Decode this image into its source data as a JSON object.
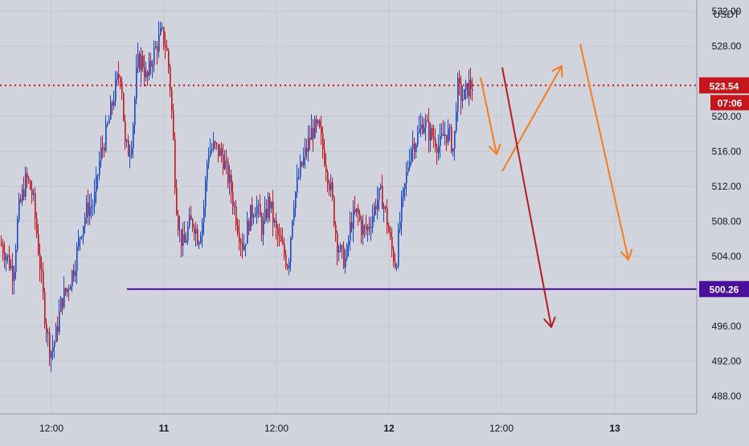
{
  "colors": {
    "background": "#d1d4dc",
    "grid": "#c3c7d0",
    "axis_border": "#9598a1",
    "up_candle": "#1848cc",
    "down_candle": "#c4161c",
    "last_price_line": "#c4161c",
    "support_line": "#4b0f9c",
    "arrow_orange": "#f57c1f",
    "arrow_darkred": "#b71c1c",
    "text": "#131722"
  },
  "chart_data": {
    "type": "candlestick",
    "y_axis_title": "USDT",
    "y_ticks": [
      "532.00",
      "528.00",
      "520.00",
      "516.00",
      "512.00",
      "508.00",
      "504.00",
      "496.00",
      "492.00",
      "488.00"
    ],
    "x_ticks": [
      "12:00",
      "11",
      "12:00",
      "12",
      "12:00",
      "13"
    ],
    "ylim": [
      486,
      533.3
    ],
    "last_price": {
      "label": "523.54",
      "value": 523.54,
      "countdown": "07:06"
    },
    "support_level": {
      "label": "500.26",
      "value": 500.26
    },
    "close_anchors": [
      [
        0,
        505.5
      ],
      [
        8,
        504.0
      ],
      [
        16,
        502.0
      ],
      [
        22,
        509.0
      ],
      [
        32,
        513.0
      ],
      [
        40,
        511.0
      ],
      [
        48,
        504.0
      ],
      [
        56,
        496.5
      ],
      [
        62,
        493.0
      ],
      [
        68,
        494.5
      ],
      [
        76,
        499.0
      ],
      [
        84,
        500.5
      ],
      [
        92,
        503.0
      ],
      [
        100,
        507.0
      ],
      [
        108,
        509.5
      ],
      [
        116,
        510.0
      ],
      [
        124,
        515.5
      ],
      [
        130,
        517.5
      ],
      [
        136,
        520.0
      ],
      [
        140,
        522.0
      ],
      [
        146,
        524.5
      ],
      [
        150,
        525.0
      ],
      [
        155,
        516.5
      ],
      [
        160,
        516.0
      ],
      [
        164,
        518.0
      ],
      [
        170,
        526.0
      ],
      [
        176,
        526.5
      ],
      [
        182,
        524.0
      ],
      [
        188,
        526.5
      ],
      [
        194,
        528.0
      ],
      [
        200,
        529.5
      ],
      [
        206,
        528.0
      ],
      [
        210,
        525.0
      ],
      [
        214,
        519.0
      ],
      [
        218,
        511.0
      ],
      [
        222,
        507.0
      ],
      [
        228,
        505.0
      ],
      [
        234,
        507.5
      ],
      [
        240,
        508.0
      ],
      [
        246,
        506.0
      ],
      [
        252,
        508.5
      ],
      [
        258,
        516.0
      ],
      [
        266,
        516.5
      ],
      [
        276,
        515.5
      ],
      [
        286,
        512.0
      ],
      [
        294,
        508.0
      ],
      [
        302,
        505.0
      ],
      [
        310,
        508.5
      ],
      [
        318,
        510.0
      ],
      [
        326,
        507.0
      ],
      [
        334,
        510.5
      ],
      [
        342,
        507.0
      ],
      [
        350,
        505.0
      ],
      [
        358,
        503.0
      ],
      [
        364,
        510.0
      ],
      [
        372,
        513.5
      ],
      [
        380,
        516.0
      ],
      [
        388,
        518.5
      ],
      [
        396,
        518.5
      ],
      [
        404,
        515.0
      ],
      [
        412,
        511.0
      ],
      [
        418,
        506.0
      ],
      [
        424,
        504.0
      ],
      [
        430,
        503.5
      ],
      [
        436,
        508.0
      ],
      [
        444,
        509.0
      ],
      [
        450,
        507.0
      ],
      [
        456,
        507.0
      ],
      [
        462,
        508.5
      ],
      [
        468,
        510.5
      ],
      [
        474,
        511.0
      ],
      [
        480,
        508.5
      ],
      [
        486,
        505.0
      ],
      [
        492,
        503.0
      ],
      [
        498,
        509.0
      ],
      [
        504,
        512.5
      ],
      [
        510,
        516.5
      ],
      [
        518,
        517.5
      ],
      [
        526,
        519.5
      ],
      [
        534,
        518.0
      ],
      [
        540,
        517.5
      ],
      [
        546,
        516.5
      ],
      [
        552,
        518.0
      ],
      [
        558,
        518.0
      ],
      [
        564,
        516.0
      ],
      [
        568,
        523.5
      ],
      [
        572,
        522.5
      ],
      [
        576,
        522.0
      ],
      [
        582,
        523.5
      ],
      [
        588,
        523.5
      ]
    ],
    "drawings": {
      "support_line_start_x": 158,
      "arrows": [
        {
          "color": "orange",
          "points": [
            [
              598,
              96
            ],
            [
              618,
              192
            ]
          ]
        },
        {
          "color": "orange",
          "points": [
            [
              625,
              213
            ],
            [
              699,
              82
            ]
          ]
        },
        {
          "color": "orange",
          "points": [
            [
              722,
              55
            ],
            [
              782,
              323
            ]
          ]
        },
        {
          "color": "darkred",
          "points": [
            [
              625,
              84
            ],
            [
              686,
              407
            ]
          ]
        }
      ]
    }
  }
}
